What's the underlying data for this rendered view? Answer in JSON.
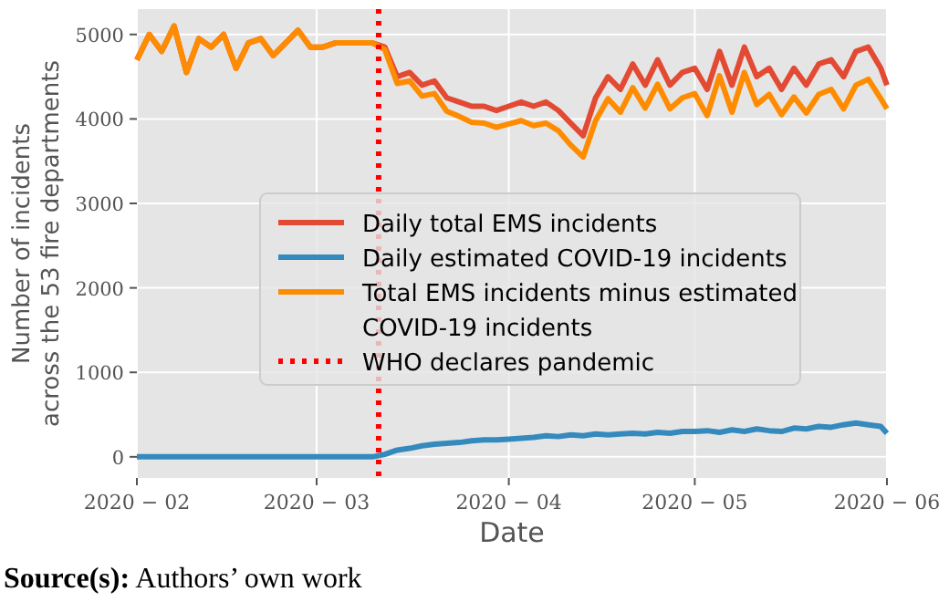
{
  "chart_data": {
    "type": "line",
    "xlabel": "Date",
    "ylabel": "Number of incidents\nacross the 53 fire departments",
    "x": [
      "2020-02-01",
      "2020-02-03",
      "2020-02-05",
      "2020-02-07",
      "2020-02-09",
      "2020-02-11",
      "2020-02-13",
      "2020-02-15",
      "2020-02-17",
      "2020-02-19",
      "2020-02-21",
      "2020-02-23",
      "2020-02-25",
      "2020-02-27",
      "2020-02-29",
      "2020-03-02",
      "2020-03-04",
      "2020-03-06",
      "2020-03-08",
      "2020-03-10",
      "2020-03-12",
      "2020-03-14",
      "2020-03-16",
      "2020-03-18",
      "2020-03-20",
      "2020-03-22",
      "2020-03-24",
      "2020-03-26",
      "2020-03-28",
      "2020-03-30",
      "2020-04-01",
      "2020-04-03",
      "2020-04-05",
      "2020-04-07",
      "2020-04-09",
      "2020-04-11",
      "2020-04-13",
      "2020-04-15",
      "2020-04-17",
      "2020-04-19",
      "2020-04-21",
      "2020-04-23",
      "2020-04-25",
      "2020-04-27",
      "2020-04-29",
      "2020-05-01",
      "2020-05-03",
      "2020-05-05",
      "2020-05-07",
      "2020-05-09",
      "2020-05-11",
      "2020-05-13",
      "2020-05-15",
      "2020-05-17",
      "2020-05-19",
      "2020-05-21",
      "2020-05-23",
      "2020-05-25",
      "2020-05-27",
      "2020-05-29",
      "2020-05-31",
      "2020-06-01"
    ],
    "series": [
      {
        "name": "Daily total EMS incidents",
        "color": "#e24a33",
        "values": [
          4700,
          5000,
          4800,
          5100,
          4550,
          4950,
          4850,
          5000,
          4600,
          4900,
          4950,
          4750,
          4900,
          5050,
          4850,
          4850,
          4900,
          4900,
          4900,
          4900,
          4850,
          4500,
          4550,
          4400,
          4450,
          4250,
          4200,
          4150,
          4150,
          4100,
          4150,
          4200,
          4150,
          4200,
          4100,
          3950,
          3800,
          4250,
          4500,
          4350,
          4650,
          4400,
          4700,
          4400,
          4550,
          4600,
          4350,
          4800,
          4400,
          4850,
          4500,
          4600,
          4350,
          4600,
          4400,
          4650,
          4700,
          4500,
          4800,
          4850,
          4600,
          4400
        ]
      },
      {
        "name": "Daily estimated COVID-19 incidents",
        "color": "#348abd",
        "values": [
          0,
          0,
          0,
          0,
          0,
          0,
          0,
          0,
          0,
          0,
          0,
          0,
          0,
          0,
          0,
          0,
          0,
          0,
          0,
          0,
          30,
          80,
          100,
          130,
          150,
          160,
          170,
          190,
          200,
          200,
          210,
          220,
          230,
          250,
          240,
          260,
          250,
          270,
          260,
          270,
          280,
          270,
          290,
          280,
          300,
          300,
          310,
          290,
          320,
          300,
          330,
          310,
          300,
          340,
          330,
          360,
          350,
          380,
          400,
          380,
          360,
          280
        ]
      },
      {
        "name": "Total EMS incidents minus estimated COVID-19 incidents",
        "color": "#ff8c00",
        "values": [
          4700,
          5000,
          4800,
          5100,
          4550,
          4950,
          4850,
          5000,
          4600,
          4900,
          4950,
          4750,
          4900,
          5050,
          4850,
          4850,
          4900,
          4900,
          4900,
          4900,
          4820,
          4420,
          4450,
          4270,
          4300,
          4090,
          4030,
          3960,
          3950,
          3900,
          3940,
          3980,
          3920,
          3950,
          3860,
          3690,
          3550,
          3980,
          4240,
          4080,
          4370,
          4130,
          4410,
          4120,
          4250,
          4300,
          4040,
          4510,
          4080,
          4550,
          4170,
          4290,
          4050,
          4260,
          4070,
          4290,
          4350,
          4120,
          4400,
          4470,
          4240,
          4120
        ]
      }
    ],
    "xlim": [
      "2020-02-01",
      "2020-06-01"
    ],
    "xticks": [
      {
        "value": "2020-02-01",
        "label": "2020 − 02"
      },
      {
        "value": "2020-03-01",
        "label": "2020 − 03"
      },
      {
        "value": "2020-04-01",
        "label": "2020 − 04"
      },
      {
        "value": "2020-05-01",
        "label": "2020 − 05"
      },
      {
        "value": "2020-06-01",
        "label": "2020 − 06"
      }
    ],
    "ylim": [
      -250,
      5300
    ],
    "yticks": [
      0,
      1000,
      2000,
      3000,
      4000,
      5000
    ],
    "ref_lines": [
      {
        "axis": "x",
        "value": "2020-03-11",
        "label": "WHO declares pandemic",
        "color": "#ff0000",
        "line_style": "dotted"
      }
    ],
    "grid": true,
    "legend": "center",
    "line_style": "solid",
    "annotations": [
      "Source(s): Authors’ own work"
    ]
  }
}
